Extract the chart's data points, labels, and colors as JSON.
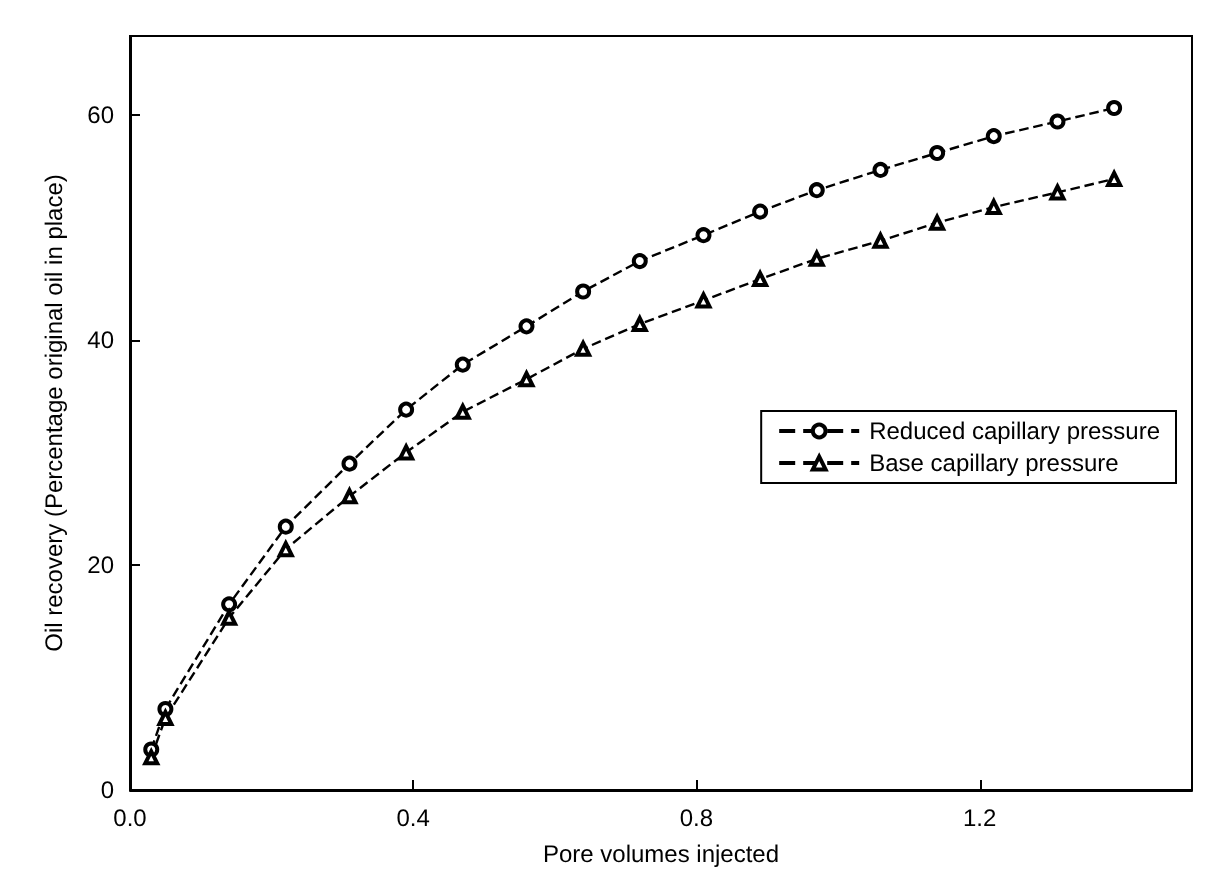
{
  "chart_data": {
    "type": "line",
    "xlabel": "Pore volumes injected",
    "ylabel": "Oil recovery (Percentage original oil in place)",
    "x": [
      0.03,
      0.05,
      0.14,
      0.22,
      0.31,
      0.39,
      0.47,
      0.56,
      0.64,
      0.72,
      0.81,
      0.89,
      0.97,
      1.06,
      1.14,
      1.22,
      1.31,
      1.39
    ],
    "series": [
      {
        "name": "Reduced capillary pressure",
        "color": "#000000",
        "marker": "circle",
        "values": [
          3.6,
          7.2,
          16.5,
          23.4,
          29.0,
          33.8,
          37.8,
          41.2,
          44.3,
          47.0,
          49.3,
          51.4,
          53.3,
          55.1,
          56.6,
          58.1,
          59.4,
          60.6
        ]
      },
      {
        "name": "Base capillary pressure",
        "color": "#000000",
        "marker": "triangle",
        "values": [
          2.9,
          6.4,
          15.3,
          21.4,
          26.1,
          30.0,
          33.6,
          36.5,
          39.2,
          41.4,
          43.5,
          45.4,
          47.2,
          48.8,
          50.4,
          51.8,
          53.1,
          54.3
        ]
      }
    ],
    "xlim": [
      0,
      1.5
    ],
    "xticks": [
      {
        "value": 0,
        "label": "0.0"
      },
      0.4,
      0.8,
      1.2
    ],
    "ylim": [
      0,
      67
    ],
    "yticks": [
      0,
      20,
      40,
      60
    ],
    "grid": false,
    "legend": "right",
    "line_style": "dashed"
  }
}
